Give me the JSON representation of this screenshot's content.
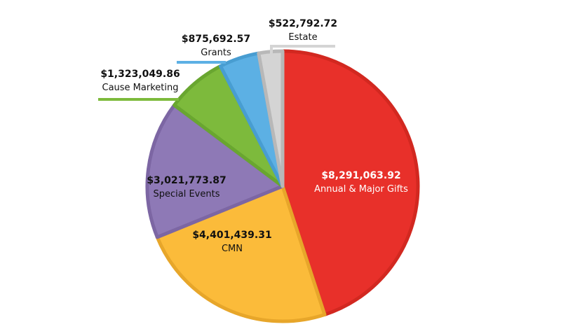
{
  "chart_data": {
    "type": "pie",
    "title": "",
    "start_angle": "12 o'clock, clockwise",
    "legend": "none (callout labels)",
    "slices": [
      {
        "label": "Annual & Major Gifts",
        "value": 8291063.92,
        "display": "$8,291,063.92",
        "color": "#e8302a",
        "stroke": "#d22820",
        "text_color": "#ffffff"
      },
      {
        "label": "CMN",
        "value": 4401439.31,
        "display": "$4,401,439.31",
        "color": "#fbbb3a",
        "stroke": "#e7a62a",
        "text_color": "#111111"
      },
      {
        "label": "Special Events",
        "value": 3021773.87,
        "display": "$3,021,773.87",
        "color": "#8e79b6",
        "stroke": "#7c66a3",
        "text_color": "#111111"
      },
      {
        "label": "Cause Marketing",
        "value": 1323049.86,
        "display": "$1,323,049.86",
        "color": "#7dba3c",
        "stroke": "#69a630",
        "text_color": "#111111"
      },
      {
        "label": "Grants",
        "value": 875692.57,
        "display": "$875,692.57",
        "color": "#5cb0e4",
        "stroke": "#489dd1",
        "text_color": "#111111"
      },
      {
        "label": "Estate",
        "value": 522792.72,
        "display": "$522,792.72",
        "color": "#d4d4d4",
        "stroke": "#b8b8b8",
        "text_color": "#111111"
      }
    ]
  }
}
